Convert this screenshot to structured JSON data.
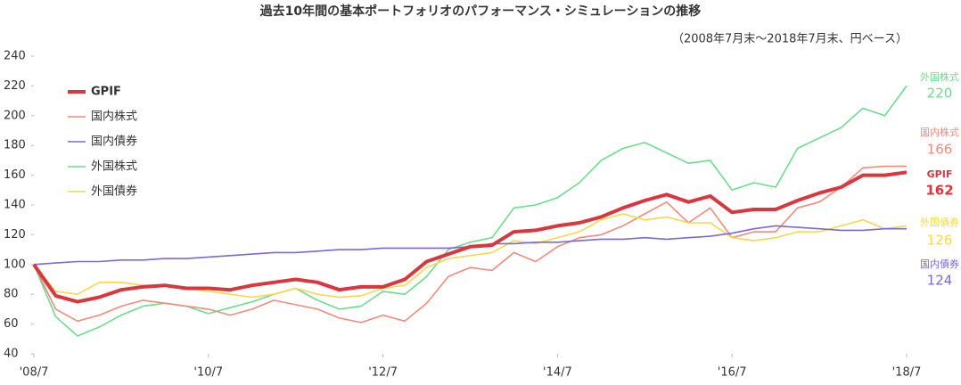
{
  "chart_data": {
    "type": "line",
    "title": "過去10年間の基本ポートフォリオのパフォーマンス・シミュレーションの推移",
    "subtitle": "（2008年7月末～2018年7月末、円ベース）",
    "x": [
      "2008-07",
      "2008-10",
      "2009-01",
      "2009-04",
      "2009-07",
      "2009-10",
      "2010-01",
      "2010-04",
      "2010-07",
      "2010-10",
      "2011-01",
      "2011-04",
      "2011-07",
      "2011-10",
      "2012-01",
      "2012-04",
      "2012-07",
      "2012-10",
      "2013-01",
      "2013-04",
      "2013-07",
      "2013-10",
      "2014-01",
      "2014-04",
      "2014-07",
      "2014-10",
      "2015-01",
      "2015-04",
      "2015-07",
      "2015-10",
      "2016-01",
      "2016-04",
      "2016-07",
      "2016-10",
      "2017-01",
      "2017-04",
      "2017-07",
      "2017-10",
      "2018-01",
      "2018-04",
      "2018-07"
    ],
    "xticks": [
      {
        "value": "2008-07",
        "label": "'08/7"
      },
      {
        "value": "2010-07",
        "label": "'10/7"
      },
      {
        "value": "2012-07",
        "label": "'12/7"
      },
      {
        "value": "2014-07",
        "label": "'14/7"
      },
      {
        "value": "2016-07",
        "label": "'16/7"
      },
      {
        "value": "2018-07",
        "label": "'18/7"
      }
    ],
    "ylim": [
      40,
      240
    ],
    "yticks": [
      40,
      60,
      80,
      100,
      120,
      140,
      160,
      180,
      200,
      220,
      240
    ],
    "grid": false,
    "series": [
      {
        "name": "GPIF",
        "color": "#d9363e",
        "line_width": 4,
        "end_value": 162,
        "values": [
          100,
          79,
          75,
          78,
          83,
          85,
          86,
          84,
          84,
          83,
          86,
          88,
          90,
          88,
          83,
          85,
          85,
          90,
          102,
          107,
          112,
          113,
          122,
          123,
          126,
          128,
          132,
          138,
          143,
          147,
          142,
          146,
          135,
          137,
          137,
          143,
          148,
          152,
          160,
          160,
          162
        ]
      },
      {
        "name": "国内株式",
        "color": "#f28b7d",
        "line_width": 1.6,
        "end_value": 166,
        "values": [
          100,
          70,
          62,
          66,
          72,
          76,
          74,
          72,
          70,
          66,
          70,
          76,
          73,
          70,
          64,
          61,
          66,
          62,
          74,
          92,
          98,
          96,
          108,
          102,
          112,
          118,
          120,
          126,
          134,
          142,
          128,
          138,
          118,
          122,
          122,
          138,
          142,
          152,
          165,
          166,
          166
        ]
      },
      {
        "name": "国内債券",
        "color": "#7b68d9",
        "line_width": 1.6,
        "end_value": 124,
        "values": [
          100,
          101,
          102,
          102,
          103,
          103,
          104,
          104,
          105,
          106,
          107,
          108,
          108,
          109,
          110,
          110,
          111,
          111,
          111,
          111,
          112,
          114,
          114,
          115,
          115,
          116,
          117,
          117,
          118,
          117,
          118,
          119,
          121,
          124,
          126,
          125,
          124,
          123,
          123,
          124,
          124
        ]
      },
      {
        "name": "外国株式",
        "color": "#6ddc8e",
        "line_width": 1.6,
        "end_value": 220,
        "values": [
          100,
          65,
          52,
          58,
          66,
          72,
          74,
          72,
          67,
          71,
          75,
          80,
          84,
          76,
          70,
          72,
          82,
          80,
          92,
          110,
          115,
          118,
          138,
          140,
          145,
          155,
          170,
          178,
          182,
          175,
          168,
          170,
          150,
          155,
          152,
          178,
          185,
          192,
          205,
          200,
          220
        ]
      },
      {
        "name": "外国債券",
        "color": "#f5d94a",
        "line_width": 1.6,
        "end_value": 126,
        "values": [
          100,
          82,
          80,
          88,
          88,
          86,
          86,
          84,
          82,
          80,
          78,
          80,
          84,
          80,
          78,
          79,
          84,
          86,
          98,
          104,
          106,
          108,
          116,
          114,
          118,
          122,
          130,
          134,
          130,
          132,
          128,
          128,
          118,
          116,
          118,
          122,
          122,
          126,
          130,
          124,
          126
        ]
      }
    ]
  }
}
